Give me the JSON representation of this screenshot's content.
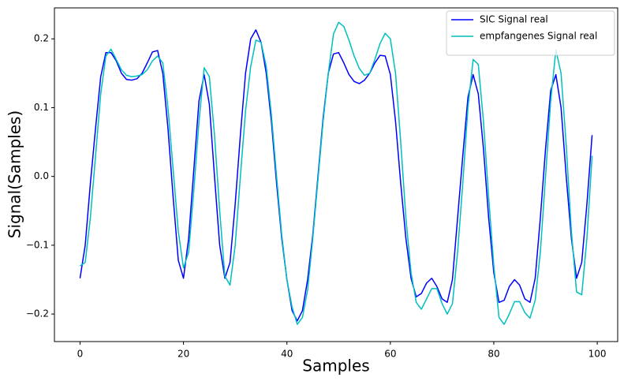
{
  "chart_data": {
    "type": "line",
    "xlabel": "Samples",
    "ylabel": "Signal(Samples)",
    "x": [
      0,
      1,
      2,
      3,
      4,
      5,
      6,
      7,
      8,
      9,
      10,
      11,
      12,
      13,
      14,
      15,
      16,
      17,
      18,
      19,
      20,
      21,
      22,
      23,
      24,
      25,
      26,
      27,
      28,
      29,
      30,
      31,
      32,
      33,
      34,
      35,
      36,
      37,
      38,
      39,
      40,
      41,
      42,
      43,
      44,
      45,
      46,
      47,
      48,
      49,
      50,
      51,
      52,
      53,
      54,
      55,
      56,
      57,
      58,
      59,
      60,
      61,
      62,
      63,
      64,
      65,
      66,
      67,
      68,
      69,
      70,
      71,
      72,
      73,
      74,
      75,
      76,
      77,
      78,
      79,
      80,
      81,
      82,
      83,
      84,
      85,
      86,
      87,
      88,
      89,
      90,
      91,
      92,
      93,
      94,
      95,
      96,
      97,
      98,
      99
    ],
    "series": [
      {
        "name": "SIC Signal real",
        "color": "#0000ff",
        "values": [
          -0.148,
          -0.1,
          -0.01,
          0.07,
          0.145,
          0.18,
          0.18,
          0.168,
          0.15,
          0.141,
          0.14,
          0.142,
          0.15,
          0.165,
          0.181,
          0.183,
          0.15,
          0.07,
          -0.03,
          -0.122,
          -0.148,
          -0.09,
          0.01,
          0.11,
          0.148,
          0.105,
          0.0,
          -0.1,
          -0.148,
          -0.125,
          -0.04,
          0.06,
          0.15,
          0.2,
          0.213,
          0.195,
          0.15,
          0.08,
          -0.01,
          -0.09,
          -0.15,
          -0.195,
          -0.21,
          -0.195,
          -0.15,
          -0.085,
          0.0,
          0.085,
          0.15,
          0.178,
          0.18,
          0.165,
          0.148,
          0.138,
          0.135,
          0.14,
          0.15,
          0.165,
          0.176,
          0.175,
          0.148,
          0.08,
          -0.01,
          -0.09,
          -0.148,
          -0.175,
          -0.17,
          -0.155,
          -0.148,
          -0.16,
          -0.178,
          -0.183,
          -0.15,
          -0.06,
          0.03,
          0.115,
          0.148,
          0.12,
          0.04,
          -0.06,
          -0.14,
          -0.183,
          -0.18,
          -0.16,
          -0.15,
          -0.158,
          -0.178,
          -0.183,
          -0.148,
          -0.06,
          0.04,
          0.125,
          0.148,
          0.1,
          0.0,
          -0.09,
          -0.148,
          -0.125,
          -0.04,
          0.06
        ]
      },
      {
        "name": "empfangenes Signal real",
        "color": "#00bfbf",
        "values": [
          -0.13,
          -0.125,
          -0.06,
          0.03,
          0.12,
          0.175,
          0.185,
          0.17,
          0.155,
          0.147,
          0.145,
          0.146,
          0.148,
          0.155,
          0.168,
          0.175,
          0.165,
          0.1,
          0.01,
          -0.08,
          -0.133,
          -0.11,
          -0.02,
          0.08,
          0.158,
          0.145,
          0.06,
          -0.05,
          -0.145,
          -0.158,
          -0.1,
          0.0,
          0.095,
          0.16,
          0.198,
          0.195,
          0.16,
          0.09,
          0.0,
          -0.085,
          -0.15,
          -0.19,
          -0.215,
          -0.205,
          -0.165,
          -0.09,
          -0.005,
          0.08,
          0.15,
          0.207,
          0.224,
          0.218,
          0.198,
          0.175,
          0.157,
          0.147,
          0.15,
          0.17,
          0.193,
          0.208,
          0.2,
          0.15,
          0.05,
          -0.06,
          -0.14,
          -0.183,
          -0.193,
          -0.178,
          -0.163,
          -0.163,
          -0.185,
          -0.2,
          -0.185,
          -0.11,
          -0.01,
          0.1,
          0.17,
          0.163,
          0.08,
          -0.03,
          -0.13,
          -0.205,
          -0.215,
          -0.2,
          -0.182,
          -0.182,
          -0.198,
          -0.206,
          -0.18,
          -0.11,
          0.0,
          0.11,
          0.184,
          0.15,
          0.045,
          -0.08,
          -0.168,
          -0.172,
          -0.09,
          0.03
        ]
      }
    ],
    "xlim": [
      -4.95,
      103.95
    ],
    "ylim": [
      -0.24,
      0.245
    ],
    "xticks": [
      0,
      20,
      40,
      60,
      80,
      100
    ],
    "yticks": [
      {
        "value": -0.2,
        "label": "−0.2"
      },
      {
        "value": -0.1,
        "label": "−0.1"
      },
      {
        "value": 0,
        "label": "0.0"
      },
      {
        "value": 0.1,
        "label": "0.1"
      },
      {
        "value": 0.2,
        "label": "0.2"
      }
    ],
    "legend": "upper right",
    "grid": false
  }
}
